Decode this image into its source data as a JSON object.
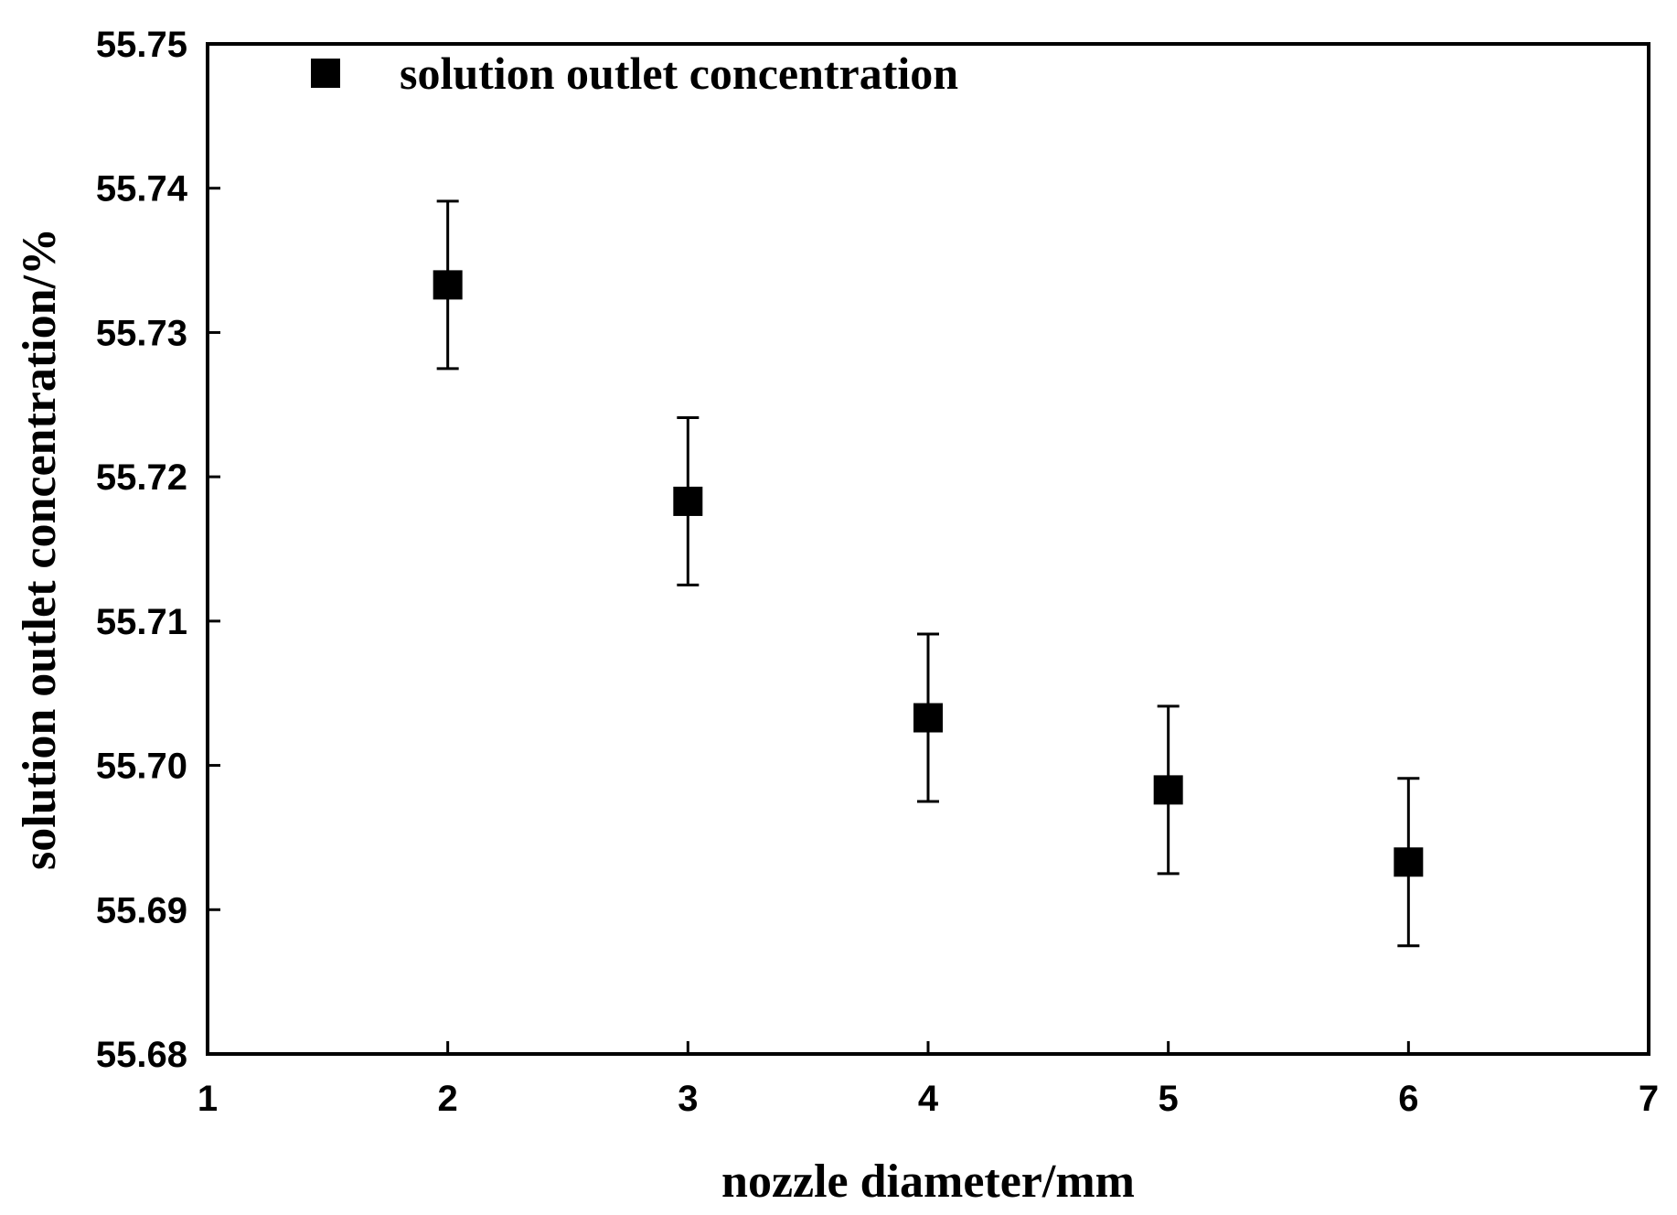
{
  "chart_data": {
    "type": "scatter",
    "xlabel": "nozzle diameter/mm",
    "ylabel": "solution outlet concentration/%",
    "xlim": [
      1,
      7
    ],
    "ylim": [
      55.68,
      55.75
    ],
    "x_ticks": [
      "1",
      "2",
      "3",
      "4",
      "5",
      "6",
      "7"
    ],
    "y_ticks": [
      "55.68",
      "55.69",
      "55.70",
      "55.71",
      "55.72",
      "55.73",
      "55.74",
      "55.75"
    ],
    "grid": false,
    "legend_position": "top-left",
    "series": [
      {
        "name": "solution outlet concentration",
        "marker": "square",
        "color": "#000000",
        "x": [
          2,
          3,
          4,
          5,
          6
        ],
        "y": [
          55.7333,
          55.7183,
          55.7033,
          55.6983,
          55.6933
        ],
        "error": [
          0.0058,
          0.0058,
          0.0058,
          0.0058,
          0.0058
        ]
      }
    ]
  }
}
